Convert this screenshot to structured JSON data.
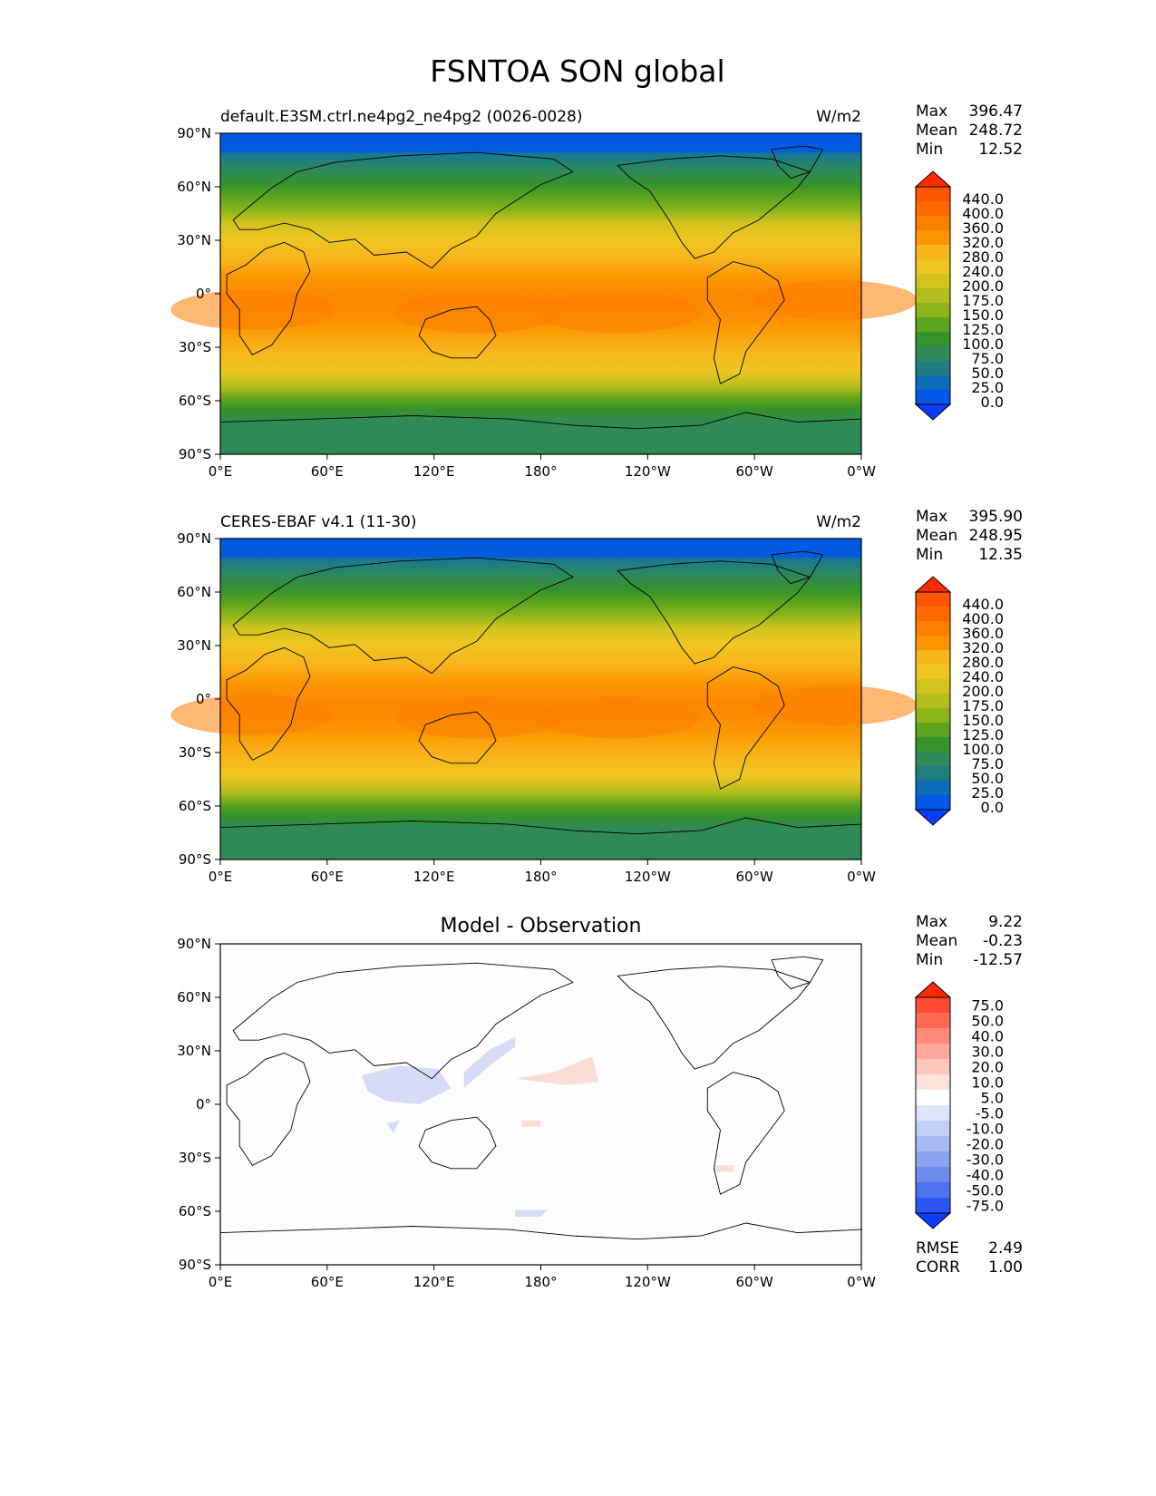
{
  "title": "FSNTOA SON global",
  "lon_ticks": [
    "0°E",
    "60°E",
    "120°E",
    "180°",
    "120°W",
    "60°W",
    "0°W"
  ],
  "lat_ticks": [
    "90°N",
    "60°N",
    "30°N",
    "0°",
    "30°S",
    "60°S",
    "90°S"
  ],
  "panels": [
    {
      "id": "test",
      "title_left": "default.E3SM.ctrl.ne4pg2_ne4pg2 (0026-0028)",
      "title_center": "",
      "units": "W/m2",
      "stats": [
        {
          "label": "Max",
          "value": "396.47"
        },
        {
          "label": "Mean",
          "value": "248.72"
        },
        {
          "label": "Min",
          "value": "12.52"
        }
      ],
      "colorbar": {
        "levels": [
          "440.0",
          "400.0",
          "360.0",
          "320.0",
          "280.0",
          "240.0",
          "200.0",
          "175.0",
          "150.0",
          "125.0",
          "100.0",
          "75.0",
          "50.0",
          "25.0",
          "0.0"
        ],
        "colors_top_to_bottom": [
          "#ff2a00",
          "#ff5500",
          "#ff6a00",
          "#fc7f00",
          "#fb9600",
          "#f8b61c",
          "#efc621",
          "#d4c31f",
          "#b4bd1d",
          "#8bb51a",
          "#5da41e",
          "#36922b",
          "#2f8a57",
          "#1f7d80",
          "#0e6db8",
          "#0057e8",
          "#0a3cff"
        ]
      },
      "extra_stats": []
    },
    {
      "id": "ref",
      "title_left": "CERES-EBAF v4.1 (11-30)",
      "title_center": "",
      "units": "W/m2",
      "stats": [
        {
          "label": "Max",
          "value": "395.90"
        },
        {
          "label": "Mean",
          "value": "248.95"
        },
        {
          "label": "Min",
          "value": "12.35"
        }
      ],
      "colorbar": {
        "levels": [
          "440.0",
          "400.0",
          "360.0",
          "320.0",
          "280.0",
          "240.0",
          "200.0",
          "175.0",
          "150.0",
          "125.0",
          "100.0",
          "75.0",
          "50.0",
          "25.0",
          "0.0"
        ],
        "colors_top_to_bottom": [
          "#ff2a00",
          "#ff5500",
          "#ff6a00",
          "#fc7f00",
          "#fb9600",
          "#f8b61c",
          "#efc621",
          "#d4c31f",
          "#b4bd1d",
          "#8bb51a",
          "#5da41e",
          "#36922b",
          "#2f8a57",
          "#1f7d80",
          "#0e6db8",
          "#0057e8",
          "#0a3cff"
        ]
      },
      "extra_stats": []
    },
    {
      "id": "diff",
      "title_left": "",
      "title_center": "Model - Observation",
      "units": "",
      "stats": [
        {
          "label": "Max",
          "value": "9.22"
        },
        {
          "label": "Mean",
          "value": "-0.23"
        },
        {
          "label": "Min",
          "value": "-12.57"
        }
      ],
      "colorbar": {
        "levels": [
          "75.0",
          "50.0",
          "40.0",
          "30.0",
          "20.0",
          "10.0",
          "5.0",
          "-5.0",
          "-10.0",
          "-20.0",
          "-30.0",
          "-40.0",
          "-50.0",
          "-75.0"
        ],
        "colors_top_to_bottom": [
          "#ff2a00",
          "#ff4b33",
          "#ff6a55",
          "#ff8a78",
          "#ffa89b",
          "#ffc6bc",
          "#ffe2dc",
          "#ffffff",
          "#dde4fb",
          "#c2cff7",
          "#a6b9f3",
          "#8aa3ef",
          "#6d8cec",
          "#4c72ef",
          "#2a55f5",
          "#0a3cff"
        ]
      },
      "extra_stats": [
        {
          "label": "RMSE",
          "value": "2.49"
        },
        {
          "label": "CORR",
          "value": "1.00"
        }
      ]
    }
  ]
}
